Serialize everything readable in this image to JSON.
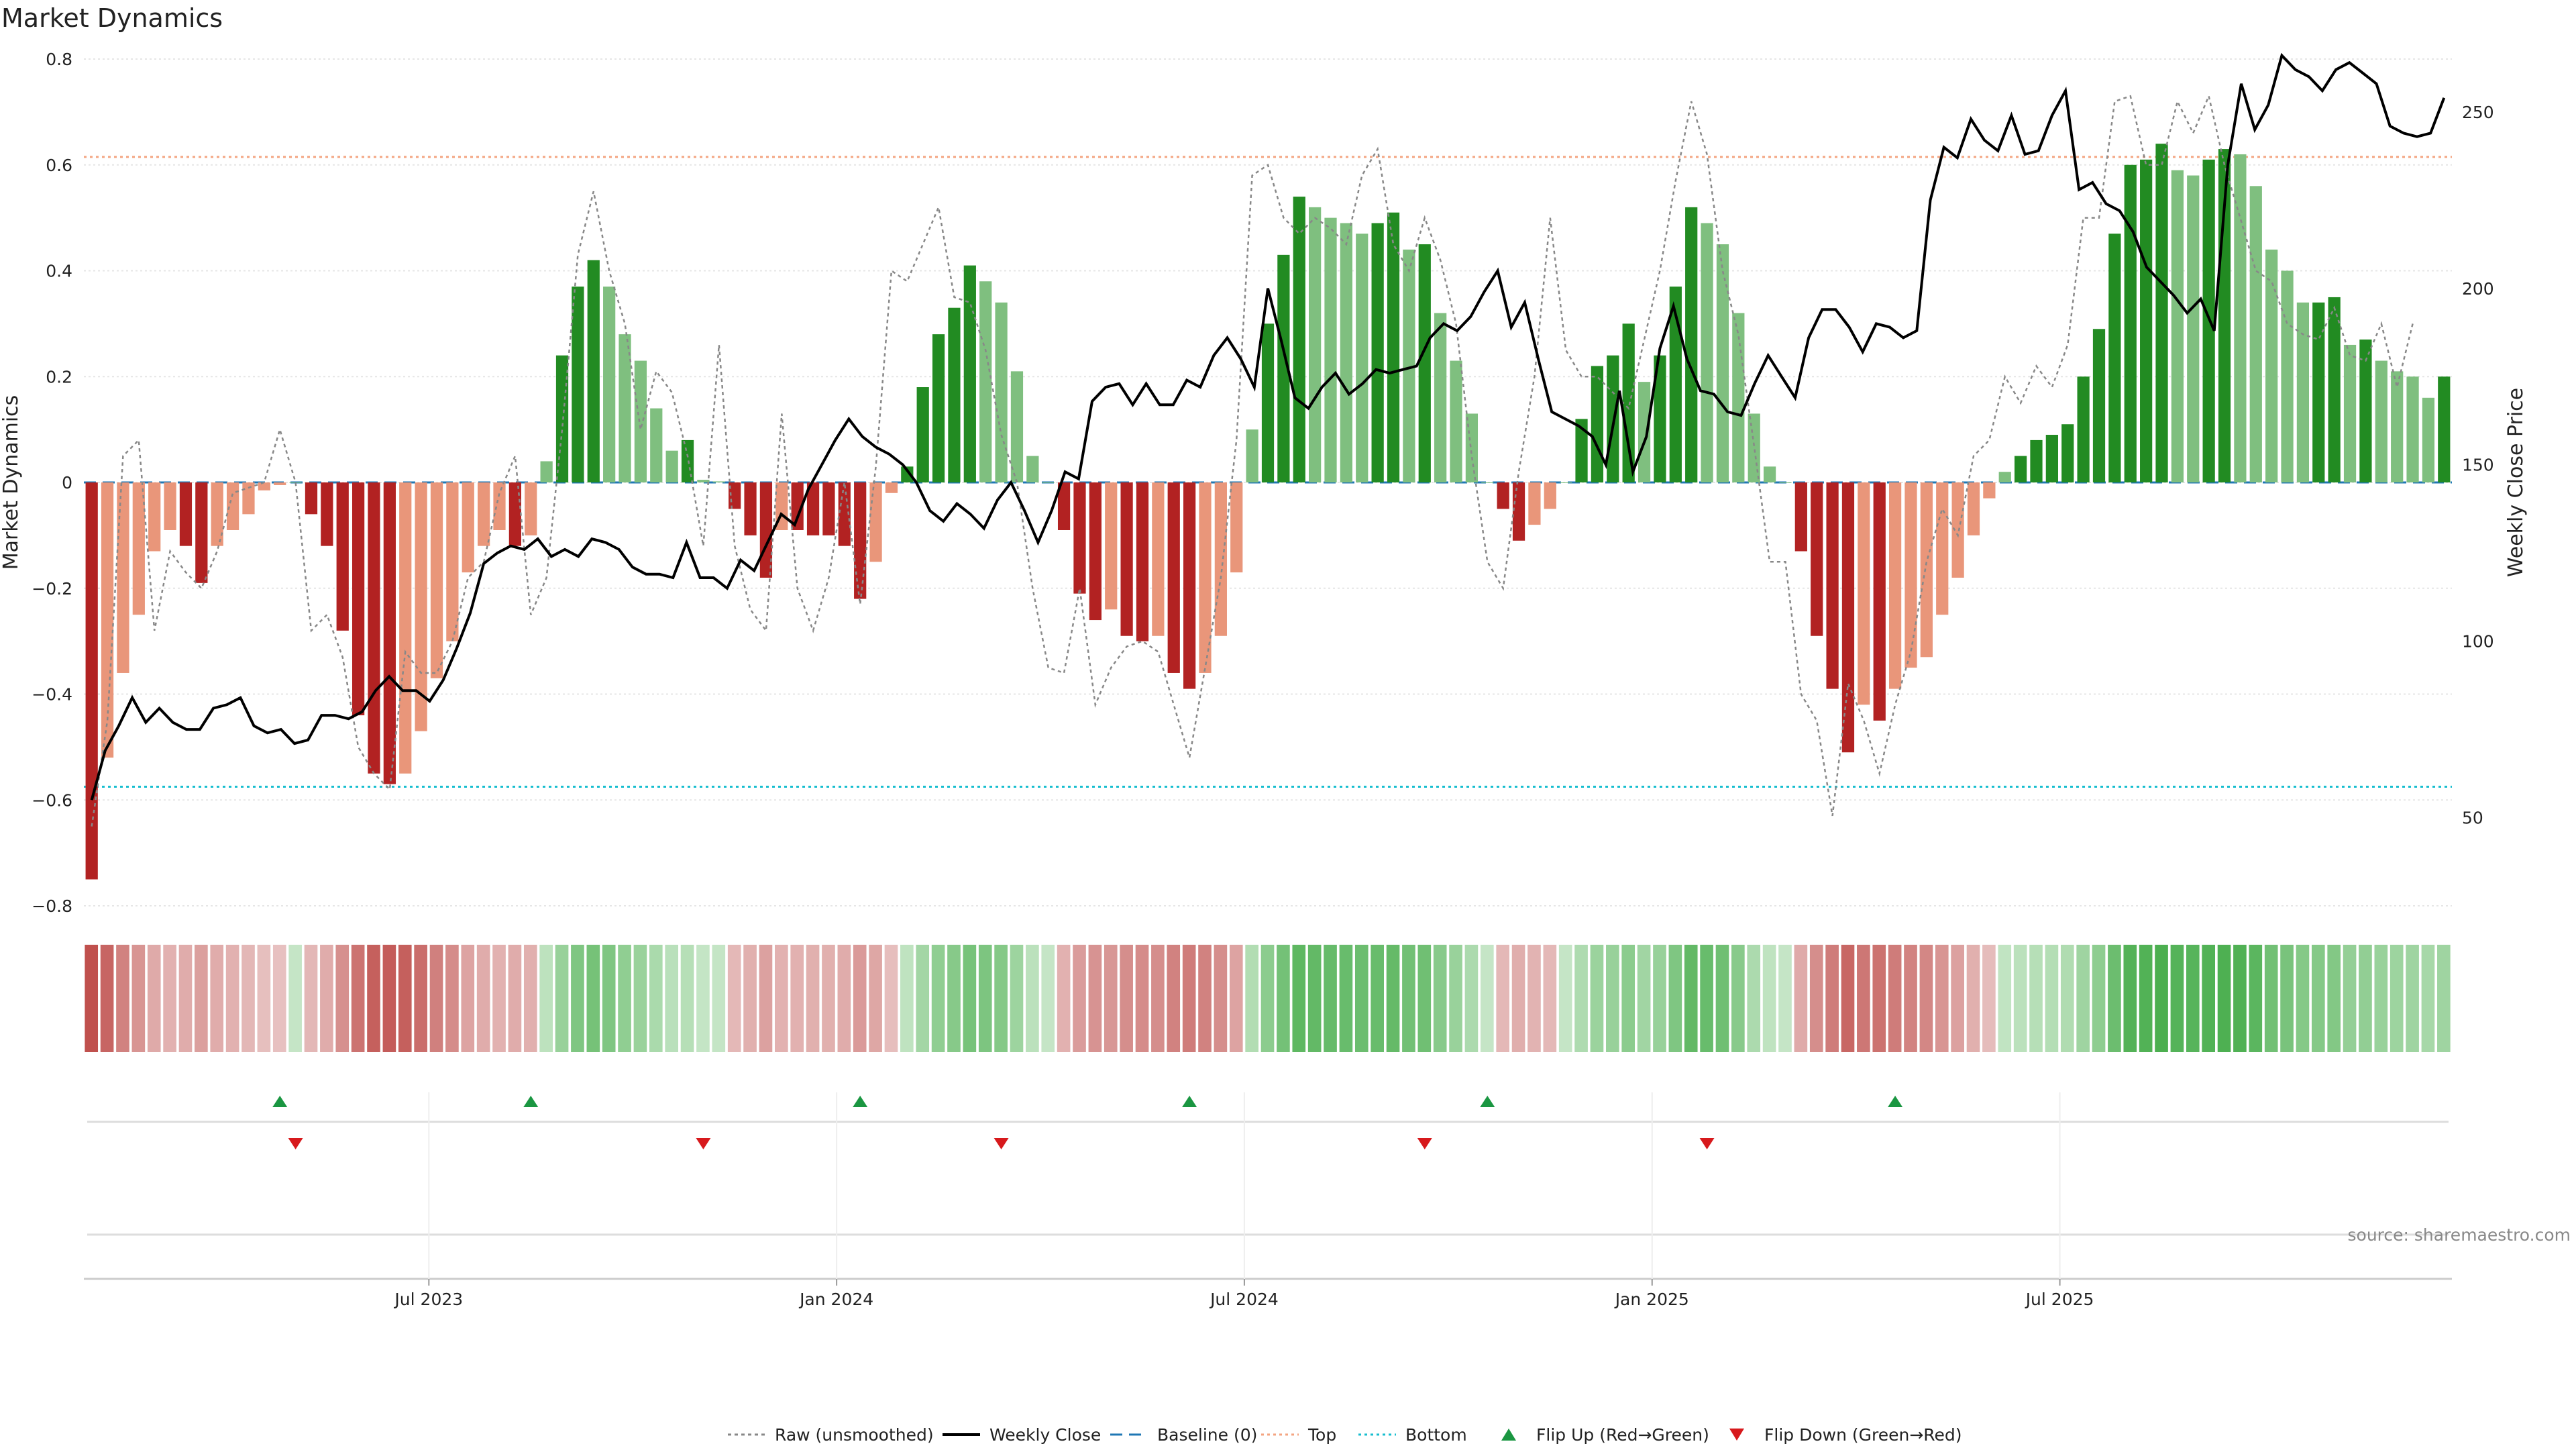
{
  "chart_data": {
    "type": "bar",
    "title": "Market Dynamics",
    "ylabel_left": "Market Dynamics",
    "ylabel_right": "Weekly Close Price",
    "ylim_left": [
      -0.8,
      0.8
    ],
    "ylim_right": [
      25,
      265
    ],
    "yticks_left": [
      "0.8",
      "0.6",
      "0.4",
      "0.2",
      "0",
      "−0.2",
      "−0.4",
      "−0.6",
      "−0.8"
    ],
    "yticks_left_values": [
      0.8,
      0.6,
      0.4,
      0.2,
      0,
      -0.2,
      -0.4,
      -0.6,
      -0.8
    ],
    "yticks_right": [
      "250",
      "200",
      "150",
      "100",
      "50"
    ],
    "yticks_right_values": [
      250,
      200,
      150,
      100,
      50
    ],
    "x_tick_labels": [
      "Jul 2023",
      "Jan 2024",
      "Jul 2024",
      "Jan 2025",
      "Jul 2025"
    ],
    "x_tick_week_index": [
      22,
      48,
      74,
      100,
      126
    ],
    "grid": true,
    "top_level": 0.615,
    "bottom_level": -0.575,
    "baseline": 0,
    "source_text": "source: sharemaestro.com",
    "colors": {
      "strong_green": "#228b22",
      "light_green": "#7fbf7f",
      "strong_red": "#b22222",
      "light_red": "#e9967a",
      "weekly_close": "#000000",
      "raw": "#888888",
      "baseline": "#1f77b4",
      "top": "#f4a582",
      "bottom": "#17becf",
      "flip_up": "#1a9641",
      "flip_down": "#d7191c"
    },
    "series": [
      {
        "name": "Market Dynamics",
        "values": [
          -0.75,
          -0.52,
          -0.36,
          -0.25,
          -0.13,
          -0.09,
          -0.12,
          -0.19,
          -0.12,
          -0.09,
          -0.06,
          -0.015,
          -0.005,
          0,
          -0.06,
          -0.12,
          -0.28,
          -0.44,
          -0.55,
          -0.57,
          -0.55,
          -0.47,
          -0.37,
          -0.3,
          -0.17,
          -0.12,
          -0.09,
          -0.12,
          -0.1,
          0.04,
          0.24,
          0.37,
          0.42,
          0.37,
          0.28,
          0.23,
          0.14,
          0.06,
          0.08,
          0.005,
          0.002,
          -0.05,
          -0.1,
          -0.18,
          -0.09,
          -0.09,
          -0.1,
          -0.1,
          -0.12,
          -0.22,
          -0.15,
          -0.02,
          0.03,
          0.18,
          0.28,
          0.33,
          0.41,
          0.38,
          0.34,
          0.21,
          0.05,
          0,
          -0.09,
          -0.21,
          -0.26,
          -0.24,
          -0.29,
          -0.3,
          -0.29,
          -0.36,
          -0.39,
          -0.36,
          -0.29,
          -0.17,
          0.1,
          0.3,
          0.43,
          0.54,
          0.52,
          0.5,
          0.49,
          0.47,
          0.49,
          0.51,
          0.44,
          0.45,
          0.32,
          0.23,
          0.13,
          0,
          -0.05,
          -0.11,
          -0.08,
          -0.05,
          0,
          0.12,
          0.22,
          0.24,
          0.3,
          0.19,
          0.24,
          0.37,
          0.52,
          0.49,
          0.45,
          0.32,
          0.13,
          0.03,
          0,
          -0.13,
          -0.29,
          -0.39,
          -0.51,
          -0.42,
          -0.45,
          -0.39,
          -0.35,
          -0.33,
          -0.25,
          -0.18,
          -0.1,
          -0.03,
          0.02,
          0.05,
          0.08,
          0.09,
          0.11,
          0.2,
          0.29,
          0.47,
          0.6,
          0.61,
          0.64,
          0.59,
          0.58,
          0.61,
          0.63,
          0.62,
          0.56,
          0.44,
          0.4,
          0.34,
          0.34,
          0.35,
          0.26,
          0.27,
          0.23,
          0.21,
          0.2,
          0.16,
          0.2
        ]
      },
      {
        "name": "Raw (unsmoothed)",
        "values": [
          -0.65,
          -0.45,
          0.05,
          0.08,
          -0.28,
          -0.13,
          -0.17,
          -0.2,
          -0.13,
          -0.02,
          -0.01,
          0.0,
          0.1,
          0.0,
          -0.28,
          -0.25,
          -0.33,
          -0.5,
          -0.55,
          -0.58,
          -0.32,
          -0.36,
          -0.36,
          -0.3,
          -0.18,
          -0.15,
          -0.02,
          0.05,
          -0.25,
          -0.18,
          0.1,
          0.43,
          0.55,
          0.4,
          0.3,
          0.1,
          0.21,
          0.17,
          0.05,
          -0.12,
          0.26,
          -0.12,
          -0.24,
          -0.28,
          0.13,
          -0.2,
          -0.28,
          -0.18,
          0.0,
          -0.23,
          0.03,
          0.4,
          0.38,
          0.45,
          0.52,
          0.35,
          0.34,
          0.25,
          0.09,
          0.0,
          -0.2,
          -0.35,
          -0.36,
          -0.2,
          -0.42,
          -0.35,
          -0.31,
          -0.3,
          -0.32,
          -0.42,
          -0.52,
          -0.35,
          -0.18,
          0.08,
          0.58,
          0.6,
          0.5,
          0.47,
          0.5,
          0.48,
          0.45,
          0.58,
          0.63,
          0.45,
          0.4,
          0.5,
          0.42,
          0.3,
          0.05,
          -0.15,
          -0.2,
          0.02,
          0.2,
          0.5,
          0.25,
          0.2,
          0.2,
          0.17,
          0.14,
          0.27,
          0.4,
          0.57,
          0.72,
          0.62,
          0.4,
          0.28,
          0.07,
          -0.15,
          -0.15,
          -0.4,
          -0.45,
          -0.63,
          -0.38,
          -0.45,
          -0.55,
          -0.42,
          -0.32,
          -0.15,
          -0.05,
          -0.1,
          0.05,
          0.08,
          0.2,
          0.15,
          0.22,
          0.18,
          0.26,
          0.5,
          0.5,
          0.72,
          0.73,
          0.6,
          0.6,
          0.72,
          0.66,
          0.73,
          0.6,
          0.5,
          0.4,
          0.38,
          0.3,
          0.28,
          0.27,
          0.33,
          0.24,
          0.23,
          0.3,
          0.18,
          0.3
        ]
      },
      {
        "name": "Weekly Close",
        "values": [
          55,
          69,
          76,
          84,
          77,
          81,
          77,
          75,
          75,
          81,
          82,
          84,
          76,
          74,
          75,
          71,
          72,
          79,
          79,
          78,
          80,
          86,
          90,
          86,
          86,
          83,
          89,
          98,
          108,
          122,
          125,
          127,
          126,
          129,
          124,
          126,
          124,
          129,
          128,
          126,
          121,
          119,
          119,
          118,
          128,
          118,
          118,
          115,
          123,
          120,
          128,
          136,
          133,
          143,
          150,
          157,
          163,
          158,
          155,
          153,
          150,
          145,
          137,
          134,
          139,
          136,
          132,
          140,
          145,
          137,
          128,
          137,
          148,
          146,
          168,
          172,
          173,
          167,
          173,
          167,
          167,
          174,
          172,
          181,
          186,
          180,
          172,
          200,
          185,
          169,
          166,
          172,
          176,
          170,
          173,
          177,
          176,
          177,
          178,
          186,
          190,
          188,
          192,
          199,
          205,
          189,
          196,
          180,
          165,
          163,
          161,
          158,
          150,
          171,
          148,
          158,
          183,
          195,
          180,
          171,
          170,
          165,
          164,
          173,
          181,
          175,
          169,
          186,
          194,
          194,
          189,
          182,
          190,
          189,
          186,
          188,
          225,
          240,
          237,
          248,
          242,
          239,
          249,
          238,
          239,
          249,
          256,
          228,
          230,
          224,
          222,
          216,
          206,
          202,
          198,
          193,
          197,
          188,
          235,
          258,
          245,
          252,
          266,
          262,
          260,
          256,
          262,
          264,
          261,
          258,
          246,
          244,
          243,
          244,
          254
        ]
      },
      {
        "name": "Regime Strip",
        "values": [
          -0.75,
          -0.52,
          -0.36,
          -0.25,
          -0.13,
          -0.09,
          -0.12,
          -0.19,
          -0.12,
          -0.09,
          -0.06,
          -0.015,
          -0.005,
          0,
          -0.06,
          -0.12,
          -0.28,
          -0.44,
          -0.55,
          -0.57,
          -0.55,
          -0.47,
          -0.37,
          -0.3,
          -0.17,
          -0.12,
          -0.09,
          -0.12,
          -0.1,
          0.04,
          0.24,
          0.37,
          0.42,
          0.37,
          0.28,
          0.23,
          0.14,
          0.06,
          0.08,
          0.005,
          0.002,
          -0.05,
          -0.1,
          -0.18,
          -0.09,
          -0.09,
          -0.1,
          -0.1,
          -0.12,
          -0.22,
          -0.15,
          -0.02,
          0.03,
          0.18,
          0.28,
          0.33,
          0.41,
          0.38,
          0.34,
          0.21,
          0.05,
          0,
          -0.09,
          -0.21,
          -0.26,
          -0.24,
          -0.29,
          -0.3,
          -0.29,
          -0.36,
          -0.39,
          -0.36,
          -0.29,
          -0.17,
          0.1,
          0.3,
          0.43,
          0.54,
          0.52,
          0.5,
          0.49,
          0.47,
          0.49,
          0.51,
          0.44,
          0.45,
          0.32,
          0.23,
          0.13,
          0,
          -0.05,
          -0.11,
          -0.08,
          -0.05,
          0,
          0.12,
          0.22,
          0.24,
          0.3,
          0.19,
          0.24,
          0.37,
          0.52,
          0.49,
          0.45,
          0.32,
          0.13,
          0.03,
          0,
          -0.13,
          -0.29,
          -0.39,
          -0.51,
          -0.42,
          -0.45,
          -0.39,
          -0.35,
          -0.33,
          -0.25,
          -0.18,
          -0.1,
          -0.03,
          0.02,
          0.05,
          0.08,
          0.09,
          0.11,
          0.2,
          0.29,
          0.47,
          0.6,
          0.61,
          0.64,
          0.59,
          0.58,
          0.61,
          0.63,
          0.62,
          0.56,
          0.44,
          0.4,
          0.34,
          0.34,
          0.35,
          0.26,
          0.27,
          0.23,
          0.21,
          0.2,
          0.16,
          0.2
        ]
      }
    ],
    "flip_up_week_index": [
      12,
      28,
      49,
      70,
      89,
      115
    ],
    "flip_down_week_index": [
      13,
      39,
      58,
      85,
      103
    ],
    "legend": [
      {
        "label": "Raw (unsmoothed)",
        "kind": "line-dotted-gray"
      },
      {
        "label": "Weekly Close",
        "kind": "line-black"
      },
      {
        "label": "Baseline (0)",
        "kind": "line-dashed-blue"
      },
      {
        "label": "Top",
        "kind": "line-dotted-orange"
      },
      {
        "label": "Bottom",
        "kind": "line-dotted-cyan"
      },
      {
        "label": "Flip Up (Red→Green)",
        "kind": "triangle-up-green"
      },
      {
        "label": "Flip Down (Green→Red)",
        "kind": "triangle-down-red"
      }
    ]
  }
}
